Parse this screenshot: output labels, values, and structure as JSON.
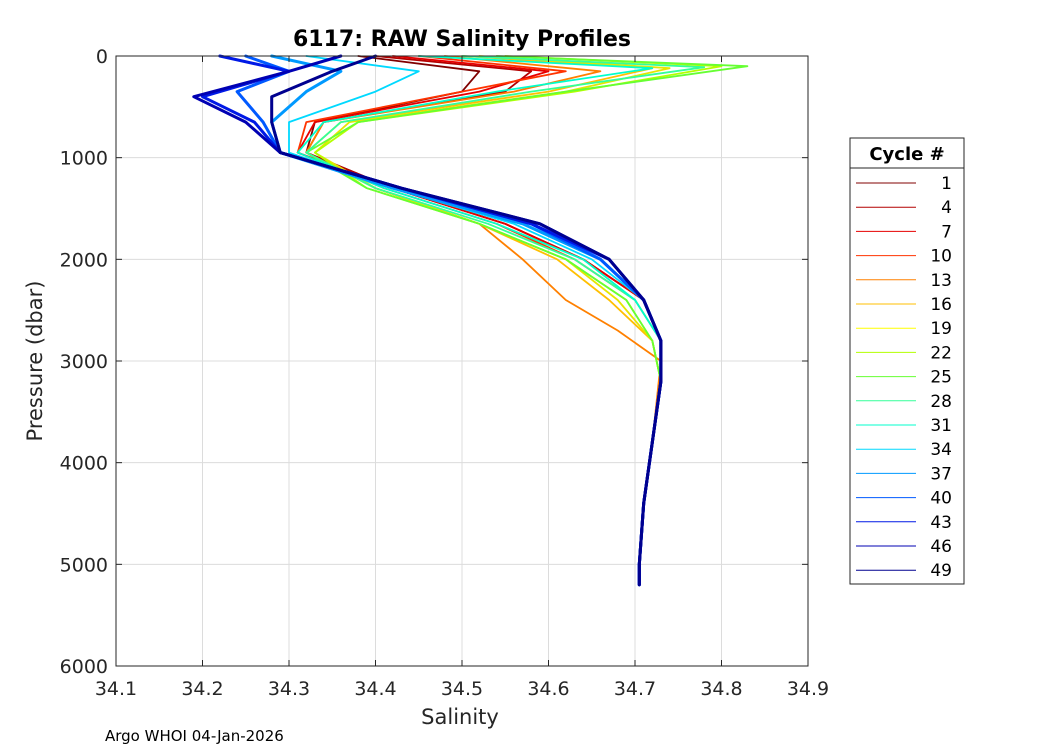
{
  "footer": "Argo WHOI 04-Jan-2026",
  "chart_data": {
    "type": "line",
    "title": "6117: RAW Salinity Profiles",
    "xlabel": "Salinity",
    "ylabel": "Pressure (dbar)",
    "xlim": [
      34.1,
      34.9
    ],
    "ylim": [
      0,
      6000
    ],
    "y_reversed": true,
    "grid": true,
    "xticks": [
      34.1,
      34.2,
      34.3,
      34.4,
      34.5,
      34.6,
      34.7,
      34.8,
      34.9
    ],
    "xtick_labels": [
      "34.1",
      "34.2",
      "34.3",
      "34.4",
      "34.5",
      "34.6",
      "34.7",
      "34.8",
      "34.9"
    ],
    "yticks": [
      0,
      1000,
      2000,
      3000,
      4000,
      5000,
      6000
    ],
    "ytick_labels": [
      "0",
      "1000",
      "2000",
      "3000",
      "4000",
      "5000",
      "6000"
    ],
    "legend": {
      "title": "Cycle #",
      "placement": "outside-right",
      "entries": [
        {
          "label": "1",
          "color": "#800000"
        },
        {
          "label": "4",
          "color": "#b30000"
        },
        {
          "label": "7",
          "color": "#e60000"
        },
        {
          "label": "10",
          "color": "#ff3300"
        },
        {
          "label": "13",
          "color": "#ff8000"
        },
        {
          "label": "16",
          "color": "#ffbf00"
        },
        {
          "label": "19",
          "color": "#ffff00"
        },
        {
          "label": "22",
          "color": "#b3ff00"
        },
        {
          "label": "25",
          "color": "#66ff33"
        },
        {
          "label": "28",
          "color": "#33ff99"
        },
        {
          "label": "31",
          "color": "#00ffcc"
        },
        {
          "label": "34",
          "color": "#00d9ff"
        },
        {
          "label": "37",
          "color": "#0099ff"
        },
        {
          "label": "40",
          "color": "#0059ff"
        },
        {
          "label": "43",
          "color": "#0019e6"
        },
        {
          "label": "46",
          "color": "#0000b3"
        },
        {
          "label": "49",
          "color": "#00008f"
        }
      ]
    },
    "series": [
      {
        "name": "1",
        "color": "#800000",
        "x": [
          34.38,
          34.52,
          34.5,
          34.33,
          34.32,
          34.42,
          34.55,
          34.64,
          34.71,
          34.73,
          34.73,
          34.72,
          34.71,
          34.705,
          34.705
        ],
        "y": [
          0,
          150,
          350,
          650,
          950,
          1300,
          1650,
          2000,
          2400,
          2800,
          3200,
          3800,
          4400,
          5000,
          5200
        ]
      },
      {
        "name": "4",
        "color": "#b30000",
        "x": [
          34.4,
          34.58,
          34.55,
          34.34,
          34.32,
          34.42,
          34.55,
          34.64,
          34.71,
          34.73,
          34.73,
          34.72,
          34.71,
          34.705,
          34.705
        ],
        "y": [
          0,
          150,
          350,
          650,
          950,
          1300,
          1650,
          2000,
          2400,
          2800,
          3200,
          3800,
          4400,
          5000,
          5200
        ]
      },
      {
        "name": "7",
        "color": "#e60000",
        "x": [
          34.42,
          34.6,
          34.52,
          34.33,
          34.31,
          34.42,
          34.55,
          34.64,
          34.71,
          34.73,
          34.73,
          34.72,
          34.71,
          34.705,
          34.705
        ],
        "y": [
          0,
          150,
          350,
          650,
          950,
          1300,
          1650,
          2000,
          2400,
          2800,
          3200,
          3800,
          4400,
          5000,
          5200
        ]
      },
      {
        "name": "10",
        "color": "#ff3300",
        "x": [
          34.45,
          34.62,
          34.5,
          34.32,
          34.31,
          34.41,
          34.54,
          34.63,
          34.7,
          34.73,
          34.73,
          34.72,
          34.71,
          34.705,
          34.705
        ],
        "y": [
          0,
          150,
          350,
          650,
          950,
          1300,
          1650,
          2000,
          2400,
          2800,
          3200,
          3800,
          4400,
          5000,
          5200
        ]
      },
      {
        "name": "13",
        "color": "#ff8000",
        "x": [
          34.48,
          34.66,
          34.56,
          34.34,
          34.32,
          34.4,
          34.52,
          34.57,
          34.62,
          34.68,
          34.73,
          34.72,
          34.71,
          34.705,
          34.705
        ],
        "y": [
          0,
          150,
          350,
          650,
          950,
          1300,
          1650,
          2000,
          2400,
          2700,
          3000,
          3800,
          4400,
          5000,
          5200
        ]
      },
      {
        "name": "16",
        "color": "#ffbf00",
        "x": [
          34.5,
          34.72,
          34.6,
          34.36,
          34.32,
          34.4,
          34.52,
          34.61,
          34.67,
          34.72,
          34.73,
          34.72,
          34.71,
          34.705,
          34.705
        ],
        "y": [
          0,
          120,
          350,
          650,
          950,
          1300,
          1650,
          2000,
          2400,
          2800,
          3200,
          3800,
          4400,
          5000,
          5200
        ]
      },
      {
        "name": "19",
        "color": "#e6e600",
        "x": [
          34.52,
          34.74,
          34.62,
          34.37,
          34.33,
          34.4,
          34.52,
          34.62,
          34.68,
          34.72,
          34.73,
          34.72,
          34.71,
          34.705,
          34.705
        ],
        "y": [
          0,
          120,
          350,
          650,
          950,
          1300,
          1650,
          2000,
          2400,
          2800,
          3200,
          3800,
          4400,
          5000,
          5200
        ]
      },
      {
        "name": "22",
        "color": "#b3ff00",
        "x": [
          34.55,
          34.8,
          34.63,
          34.38,
          34.33,
          34.39,
          34.52,
          34.62,
          34.69,
          34.72,
          34.73,
          34.72,
          34.71,
          34.705,
          34.705
        ],
        "y": [
          0,
          100,
          350,
          650,
          950,
          1300,
          1650,
          2000,
          2400,
          2800,
          3200,
          3800,
          4400,
          5000,
          5200
        ]
      },
      {
        "name": "25",
        "color": "#66ff33",
        "x": [
          34.54,
          34.83,
          34.62,
          34.38,
          34.32,
          34.39,
          34.52,
          34.62,
          34.69,
          34.72,
          34.73,
          34.72,
          34.71,
          34.705,
          34.705
        ],
        "y": [
          0,
          100,
          350,
          650,
          950,
          1300,
          1650,
          2000,
          2400,
          2800,
          3200,
          3800,
          4400,
          5000,
          5200
        ]
      },
      {
        "name": "28",
        "color": "#33ff99",
        "x": [
          34.5,
          34.78,
          34.58,
          34.36,
          34.32,
          34.4,
          34.53,
          34.63,
          34.7,
          34.73,
          34.73,
          34.72,
          34.71,
          34.705,
          34.705
        ],
        "y": [
          0,
          110,
          350,
          650,
          950,
          1300,
          1650,
          2000,
          2400,
          2800,
          3200,
          3800,
          4400,
          5000,
          5200
        ]
      },
      {
        "name": "31",
        "color": "#00ffcc",
        "x": [
          34.45,
          34.72,
          34.54,
          34.34,
          34.31,
          34.41,
          34.54,
          34.64,
          34.7,
          34.73,
          34.73,
          34.72,
          34.71,
          34.705,
          34.705
        ],
        "y": [
          0,
          120,
          350,
          650,
          950,
          1300,
          1650,
          2000,
          2400,
          2800,
          3200,
          3800,
          4400,
          5000,
          5200
        ]
      },
      {
        "name": "34",
        "color": "#00d9ff",
        "x": [
          34.32,
          34.45,
          34.4,
          34.3,
          34.3,
          34.42,
          34.56,
          34.65,
          34.71,
          34.73,
          34.73,
          34.72,
          34.71,
          34.705,
          34.705
        ],
        "y": [
          0,
          150,
          350,
          650,
          950,
          1300,
          1650,
          2000,
          2400,
          2800,
          3200,
          3800,
          4400,
          5000,
          5200
        ]
      },
      {
        "name": "37",
        "color": "#0099ff",
        "x": [
          34.28,
          34.36,
          34.32,
          34.28,
          34.29,
          34.42,
          34.57,
          34.66,
          34.71,
          34.73,
          34.73,
          34.72,
          34.71,
          34.705,
          34.705
        ],
        "y": [
          0,
          150,
          350,
          650,
          950,
          1300,
          1650,
          2000,
          2400,
          2800,
          3200,
          3800,
          4400,
          5000,
          5200
        ]
      },
      {
        "name": "40",
        "color": "#0059ff",
        "x": [
          34.25,
          34.3,
          34.24,
          34.27,
          34.29,
          34.43,
          34.58,
          34.66,
          34.71,
          34.73,
          34.73,
          34.72,
          34.71,
          34.705,
          34.705
        ],
        "y": [
          0,
          150,
          350,
          650,
          950,
          1300,
          1650,
          2000,
          2400,
          2800,
          3200,
          3800,
          4400,
          5000,
          5200
        ]
      },
      {
        "name": "43",
        "color": "#0019e6",
        "x": [
          34.22,
          34.3,
          34.2,
          34.26,
          34.29,
          34.43,
          34.58,
          34.67,
          34.71,
          34.73,
          34.73,
          34.72,
          34.71,
          34.705,
          34.705
        ],
        "y": [
          0,
          150,
          400,
          650,
          950,
          1300,
          1650,
          2000,
          2400,
          2800,
          3200,
          3800,
          4400,
          5000,
          5200
        ]
      },
      {
        "name": "46",
        "color": "#0000b3",
        "x": [
          34.36,
          34.3,
          34.19,
          34.25,
          34.29,
          34.43,
          34.59,
          34.67,
          34.71,
          34.73,
          34.73,
          34.72,
          34.71,
          34.705,
          34.705
        ],
        "y": [
          0,
          150,
          400,
          650,
          950,
          1300,
          1650,
          2000,
          2400,
          2800,
          3200,
          3800,
          4400,
          5000,
          5200
        ]
      },
      {
        "name": "49",
        "color": "#00008f",
        "x": [
          34.4,
          34.35,
          34.28,
          34.28,
          34.29,
          34.43,
          34.59,
          34.67,
          34.71,
          34.73,
          34.73,
          34.72,
          34.71,
          34.705,
          34.705
        ],
        "y": [
          0,
          150,
          400,
          650,
          950,
          1300,
          1650,
          2000,
          2400,
          2800,
          3200,
          3800,
          4400,
          5000,
          5200
        ]
      }
    ]
  }
}
